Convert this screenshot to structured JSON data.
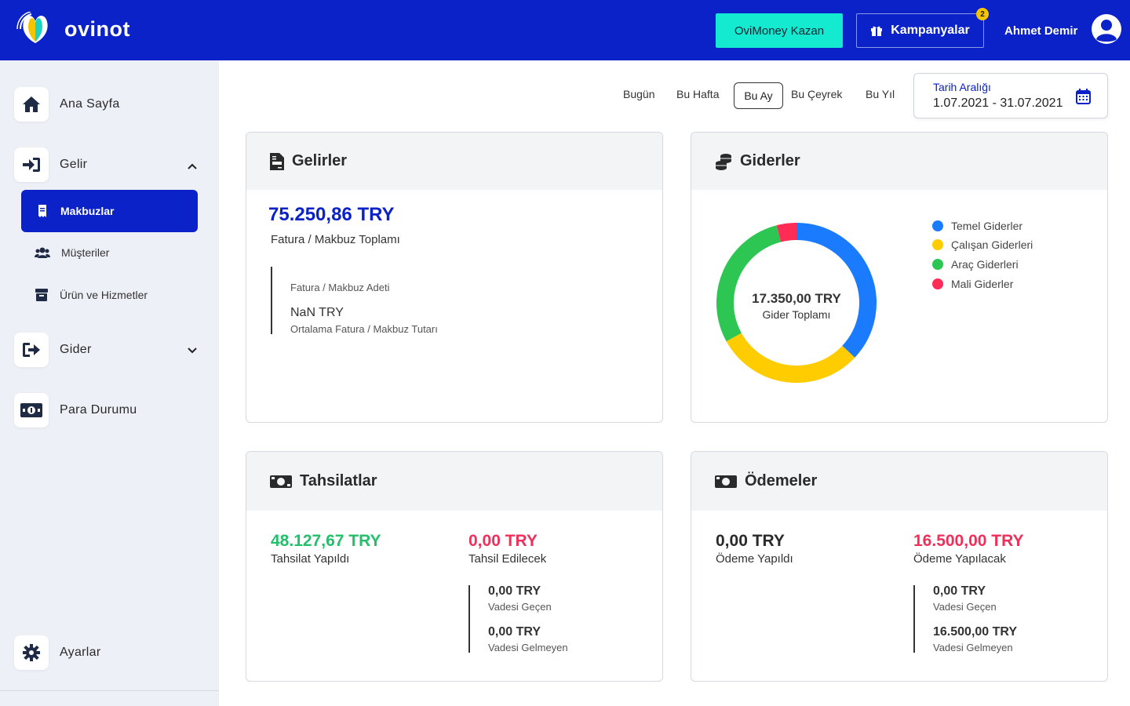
{
  "header": {
    "brand": "ovinot",
    "ovimoney_label": "OviMoney Kazan",
    "kampanya_label": "Kampanyalar",
    "kampanya_badge": "2",
    "user_name": "Ahmet Demir"
  },
  "sidebar": {
    "home": "Ana Sayfa",
    "gelir": "Gelir",
    "makbuzlar": "Makbuzlar",
    "musteriler": "Müşteriler",
    "urunler": "Ürün ve Hizmetler",
    "gider": "Gider",
    "para": "Para Durumu",
    "ayarlar": "Ayarlar"
  },
  "filters": {
    "bugun": "Bugün",
    "bu_hafta": "Bu Hafta",
    "bu_ay": "Bu Ay",
    "bu_ceyrek": "Bu Çeyrek",
    "bu_yil": "Bu Yıl",
    "date_label": "Tarih Aralığı",
    "date_range": "1.07.2021 - 31.07.2021"
  },
  "gelirler": {
    "title": "Gelirler",
    "total": "75.250,86 TRY",
    "total_label": "Fatura / Makbuz Toplamı",
    "count_label": "Fatura / Makbuz Adeti",
    "avg_value": "NaN TRY",
    "avg_label": "Ortalama Fatura / Makbuz Tutarı"
  },
  "giderler": {
    "title": "Giderler",
    "center_value": "17.350,00 TRY",
    "center_label": "Gider Toplamı",
    "legend": [
      {
        "label": "Temel Giderler",
        "color": "#1a7bff"
      },
      {
        "label": "Çalışan Giderleri",
        "color": "#ffcc00"
      },
      {
        "label": "Araç Giderleri",
        "color": "#2dc653"
      },
      {
        "label": "Mali Giderler",
        "color": "#ff2d55"
      }
    ]
  },
  "chart_data": {
    "type": "pie",
    "title": "Giderler",
    "categories": [
      "Temel Giderler",
      "Çalışan Giderleri",
      "Araç Giderleri",
      "Mali Giderler"
    ],
    "values": [
      37,
      30,
      29,
      4
    ],
    "colors": [
      "#1a7bff",
      "#ffcc00",
      "#2dc653",
      "#ff2d55"
    ]
  },
  "tahsilatlar": {
    "title": "Tahsilatlar",
    "done_value": "48.127,67 TRY",
    "done_label": "Tahsilat Yapıldı",
    "pending_value": "0,00 TRY",
    "pending_label": "Tahsil Edilecek",
    "overdue_value": "0,00 TRY",
    "overdue_label": "Vadesi Geçen",
    "notdue_value": "0,00 TRY",
    "notdue_label": "Vadesi Gelmeyen"
  },
  "odemeler": {
    "title": "Ödemeler",
    "done_value": "0,00 TRY",
    "done_label": "Ödeme Yapıldı",
    "pending_value": "16.500,00 TRY",
    "pending_label": "Ödeme Yapılacak",
    "overdue_value": "0,00 TRY",
    "overdue_label": "Vadesi Geçen",
    "notdue_value": "16.500,00 TRY",
    "notdue_label": "Vadesi Gelmeyen"
  }
}
